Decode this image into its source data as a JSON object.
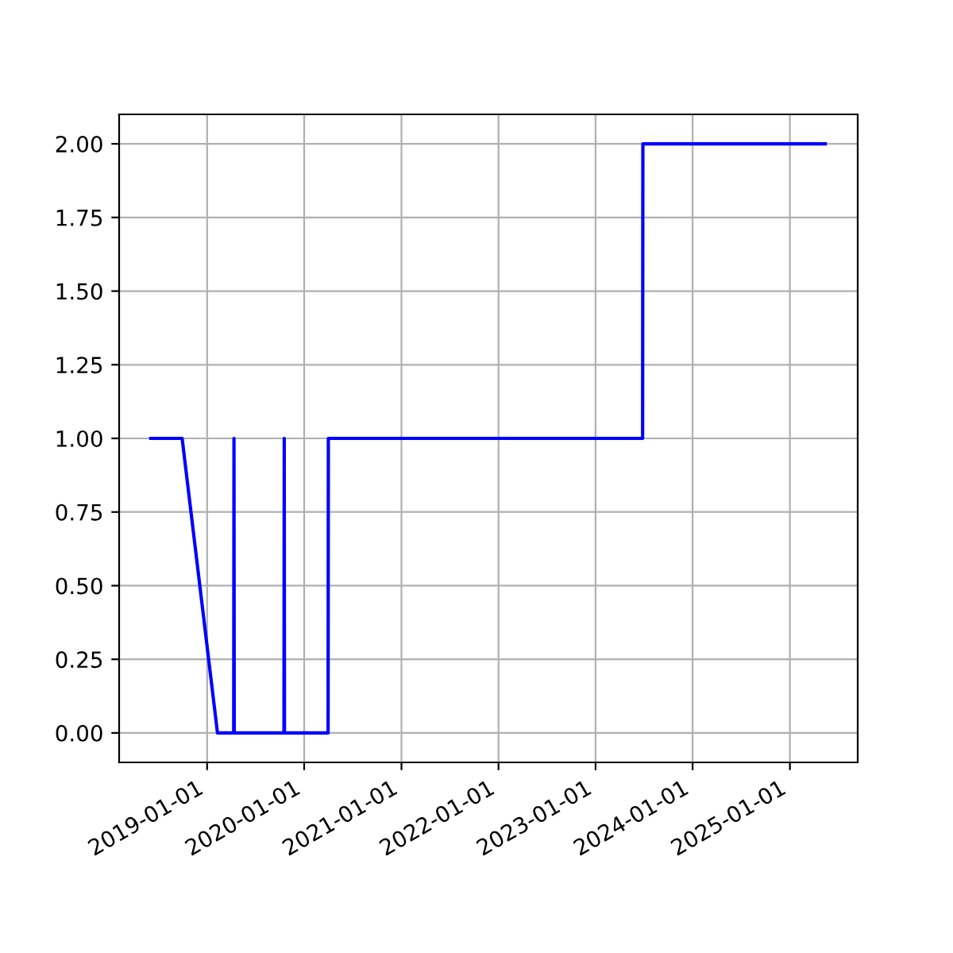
{
  "chart_data": {
    "type": "line",
    "x": [
      "2018-06-03",
      "2018-09-29",
      "2019-02-09",
      "2019-04-11",
      "2019-04-12",
      "2019-04-13",
      "2019-10-17",
      "2019-10-18",
      "2019-10-19",
      "2020-03-31",
      "2020-04-01",
      "2023-06-27",
      "2023-06-28",
      "2025-05-14"
    ],
    "series": [
      {
        "color": "#0000ff",
        "values": [
          1,
          1,
          0,
          0,
          1,
          0,
          0,
          1,
          0,
          0,
          1,
          1,
          2,
          2
        ]
      }
    ],
    "xlim": [
      "2018-02-04",
      "2025-09-13"
    ],
    "xticks": [
      "2019-01-01",
      "2020-01-01",
      "2021-01-01",
      "2022-01-01",
      "2023-01-01",
      "2024-01-01",
      "2025-01-01"
    ],
    "ylim": [
      -0.1,
      2.1
    ],
    "yticks": [
      {
        "value": 0,
        "label": "0.00"
      },
      {
        "value": 0.25,
        "label": "0.25"
      },
      {
        "value": 0.5,
        "label": "0.50"
      },
      {
        "value": 0.75,
        "label": "0.75"
      },
      {
        "value": 1,
        "label": "1.00"
      },
      {
        "value": 1.25,
        "label": "1.25"
      },
      {
        "value": 1.5,
        "label": "1.50"
      },
      {
        "value": 1.75,
        "label": "1.75"
      },
      {
        "value": 2,
        "label": "2.00"
      }
    ],
    "grid": true
  }
}
